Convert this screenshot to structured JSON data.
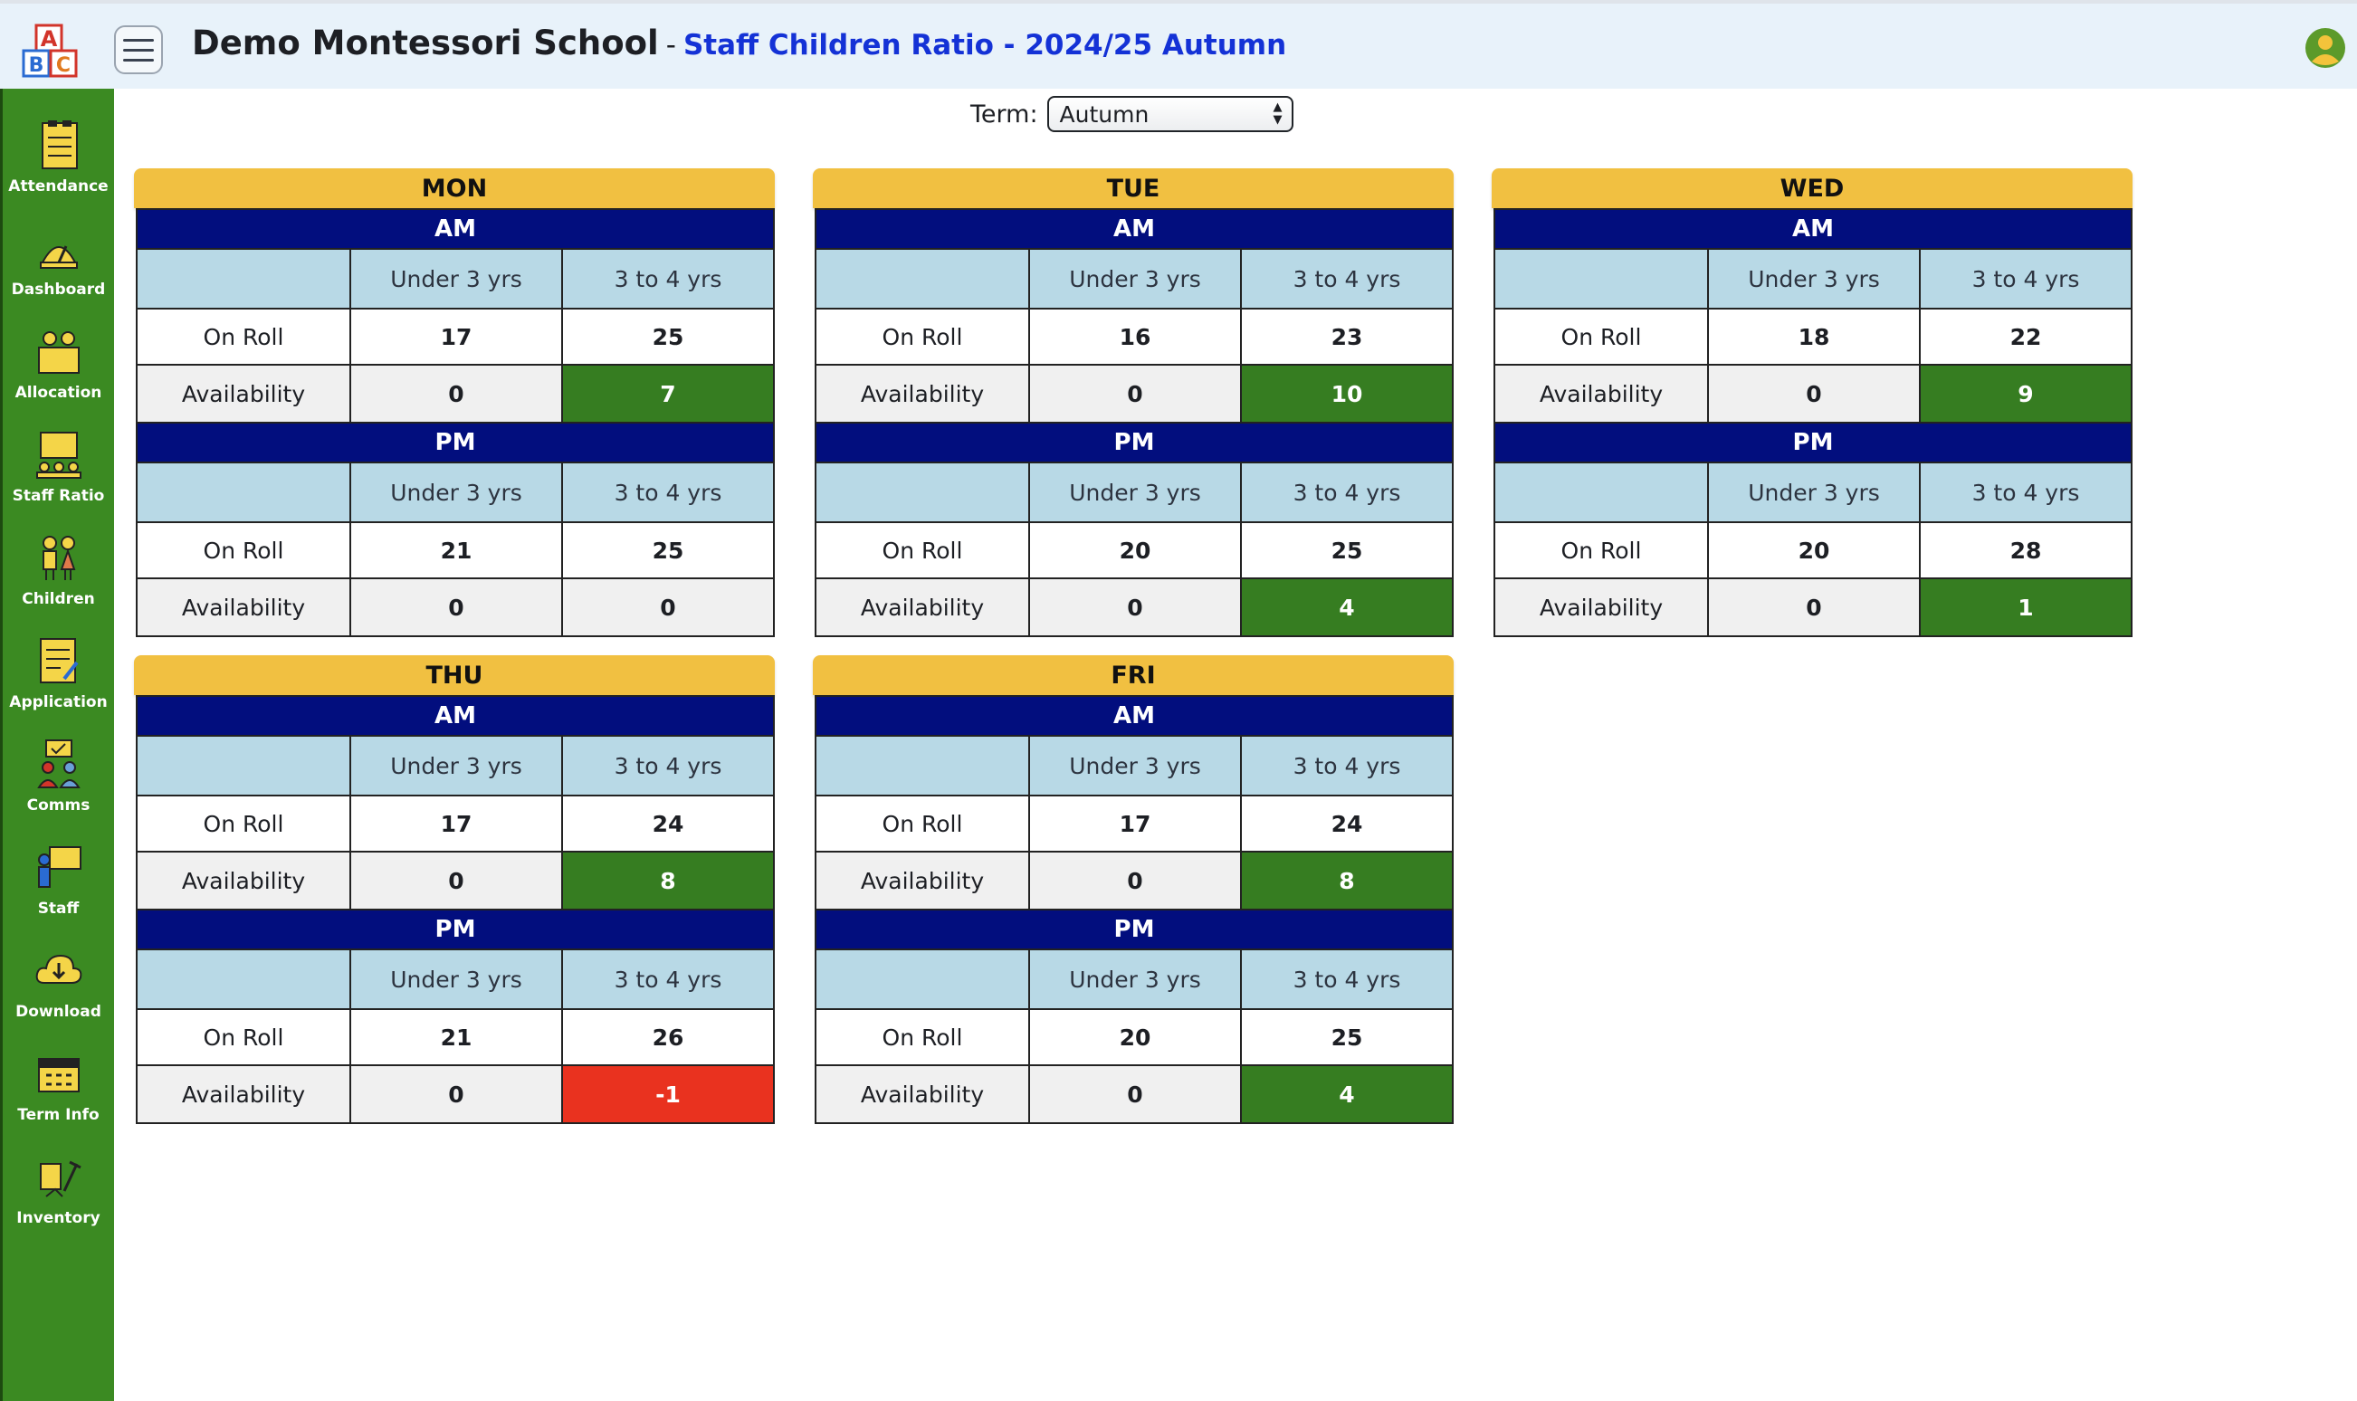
{
  "header": {
    "school_name": "Demo Montessori School",
    "separator": "-",
    "page_title": "Staff Children Ratio - 2024/25 Autumn"
  },
  "sidebar": {
    "items": [
      {
        "label": "Attendance",
        "icon": "attendance-icon"
      },
      {
        "label": "Dashboard",
        "icon": "dashboard-icon"
      },
      {
        "label": "Allocation",
        "icon": "allocation-icon"
      },
      {
        "label": "Staff Ratio",
        "icon": "staff-ratio-icon"
      },
      {
        "label": "Children",
        "icon": "children-icon"
      },
      {
        "label": "Application",
        "icon": "application-icon"
      },
      {
        "label": "Comms",
        "icon": "comms-icon"
      },
      {
        "label": "Staff",
        "icon": "staff-icon"
      },
      {
        "label": "Download",
        "icon": "download-icon"
      },
      {
        "label": "Term Info",
        "icon": "term-info-icon"
      },
      {
        "label": "Inventory",
        "icon": "inventory-icon"
      }
    ]
  },
  "term": {
    "label": "Term:",
    "selected": "Autumn"
  },
  "columns": {
    "under3": "Under 3 yrs",
    "three_to_four": "3 to 4 yrs"
  },
  "row_labels": {
    "on_roll": "On Roll",
    "availability": "Availability"
  },
  "colors": {
    "available": "#367d21",
    "over": "#e9321f",
    "header": "#f1c041",
    "session": "#020e7e",
    "sidebar": "#3b8a22"
  },
  "days": [
    {
      "name": "MON",
      "sessions": [
        {
          "name": "AM",
          "on_roll": [
            "17",
            "25"
          ],
          "availability": [
            "0",
            "7"
          ],
          "status": [
            "none",
            "ok"
          ]
        },
        {
          "name": "PM",
          "on_roll": [
            "21",
            "25"
          ],
          "availability": [
            "0",
            "0"
          ],
          "status": [
            "none",
            "none"
          ]
        }
      ]
    },
    {
      "name": "TUE",
      "sessions": [
        {
          "name": "AM",
          "on_roll": [
            "16",
            "23"
          ],
          "availability": [
            "0",
            "10"
          ],
          "status": [
            "none",
            "ok"
          ]
        },
        {
          "name": "PM",
          "on_roll": [
            "20",
            "25"
          ],
          "availability": [
            "0",
            "4"
          ],
          "status": [
            "none",
            "ok"
          ]
        }
      ]
    },
    {
      "name": "WED",
      "sessions": [
        {
          "name": "AM",
          "on_roll": [
            "18",
            "22"
          ],
          "availability": [
            "0",
            "9"
          ],
          "status": [
            "none",
            "ok"
          ]
        },
        {
          "name": "PM",
          "on_roll": [
            "20",
            "28"
          ],
          "availability": [
            "0",
            "1"
          ],
          "status": [
            "none",
            "ok"
          ]
        }
      ]
    },
    {
      "name": "THU",
      "sessions": [
        {
          "name": "AM",
          "on_roll": [
            "17",
            "24"
          ],
          "availability": [
            "0",
            "8"
          ],
          "status": [
            "none",
            "ok"
          ]
        },
        {
          "name": "PM",
          "on_roll": [
            "21",
            "26"
          ],
          "availability": [
            "0",
            "-1"
          ],
          "status": [
            "none",
            "bad"
          ]
        }
      ]
    },
    {
      "name": "FRI",
      "sessions": [
        {
          "name": "AM",
          "on_roll": [
            "17",
            "24"
          ],
          "availability": [
            "0",
            "8"
          ],
          "status": [
            "none",
            "ok"
          ]
        },
        {
          "name": "PM",
          "on_roll": [
            "20",
            "25"
          ],
          "availability": [
            "0",
            "4"
          ],
          "status": [
            "none",
            "ok"
          ]
        }
      ]
    }
  ]
}
